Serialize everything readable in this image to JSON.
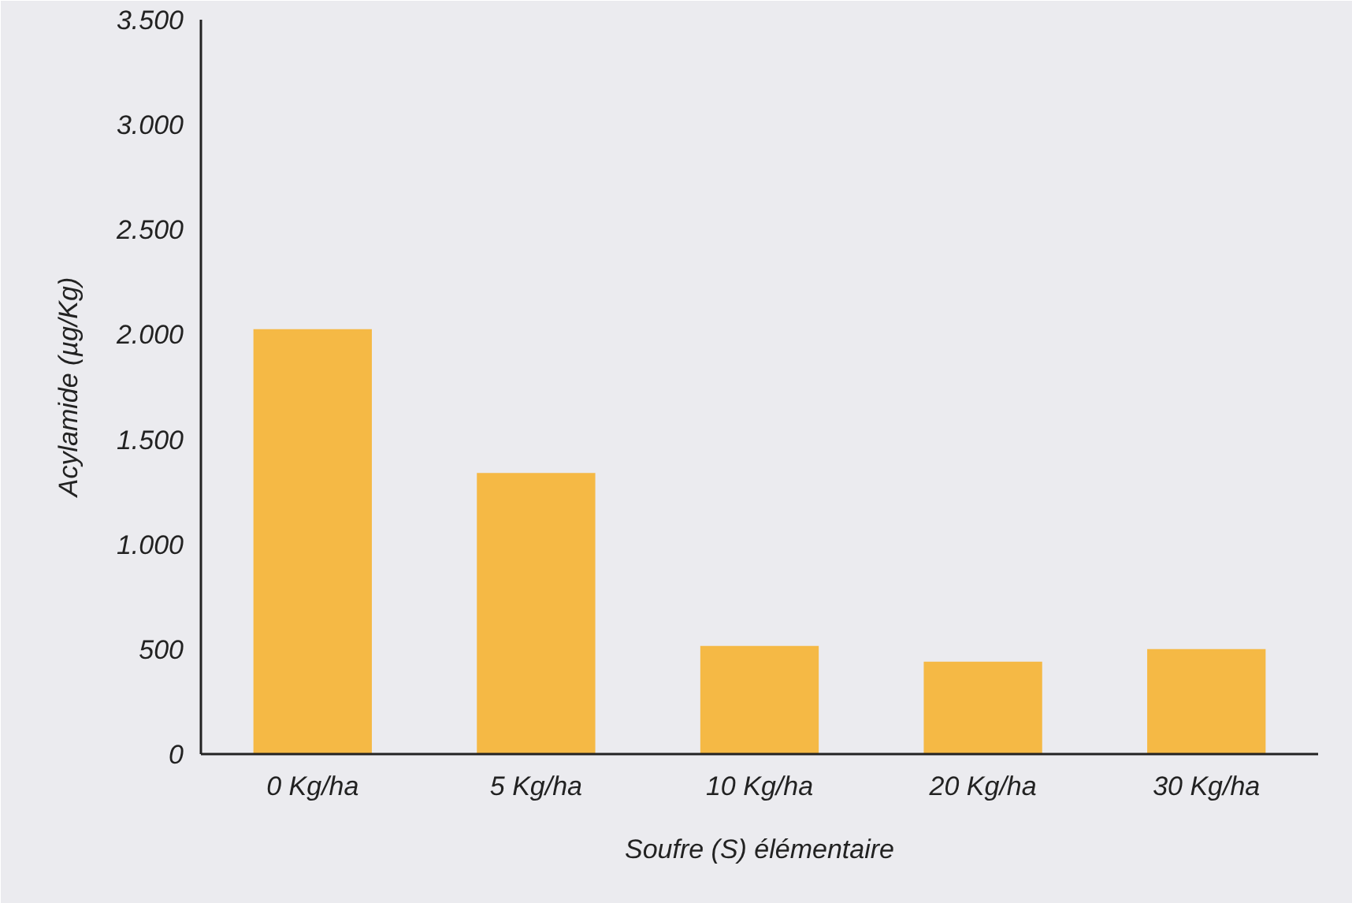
{
  "chart_data": {
    "type": "bar",
    "xlabel": "Soufre (S) élémentaire",
    "ylabel": "Acylamide (µg/Kg)",
    "categories": [
      "0 Kg/ha",
      "5 Kg/ha",
      "10 Kg/ha",
      "20 Kg/ha",
      "30 Kg/ha"
    ],
    "values": [
      2025,
      1340,
      515,
      440,
      500
    ],
    "color": "#f5b945",
    "ylim": [
      0,
      3500
    ],
    "yticks": [
      {
        "value": 0,
        "label": "0"
      },
      {
        "value": 500,
        "label": "500"
      },
      {
        "value": 1000,
        "label": "1.000"
      },
      {
        "value": 1500,
        "label": "1.500"
      },
      {
        "value": 2000,
        "label": "2.000"
      },
      {
        "value": 2500,
        "label": "2.500"
      },
      {
        "value": 3000,
        "label": "3.000"
      },
      {
        "value": 3500,
        "label": "3.500"
      }
    ],
    "grid": false
  }
}
